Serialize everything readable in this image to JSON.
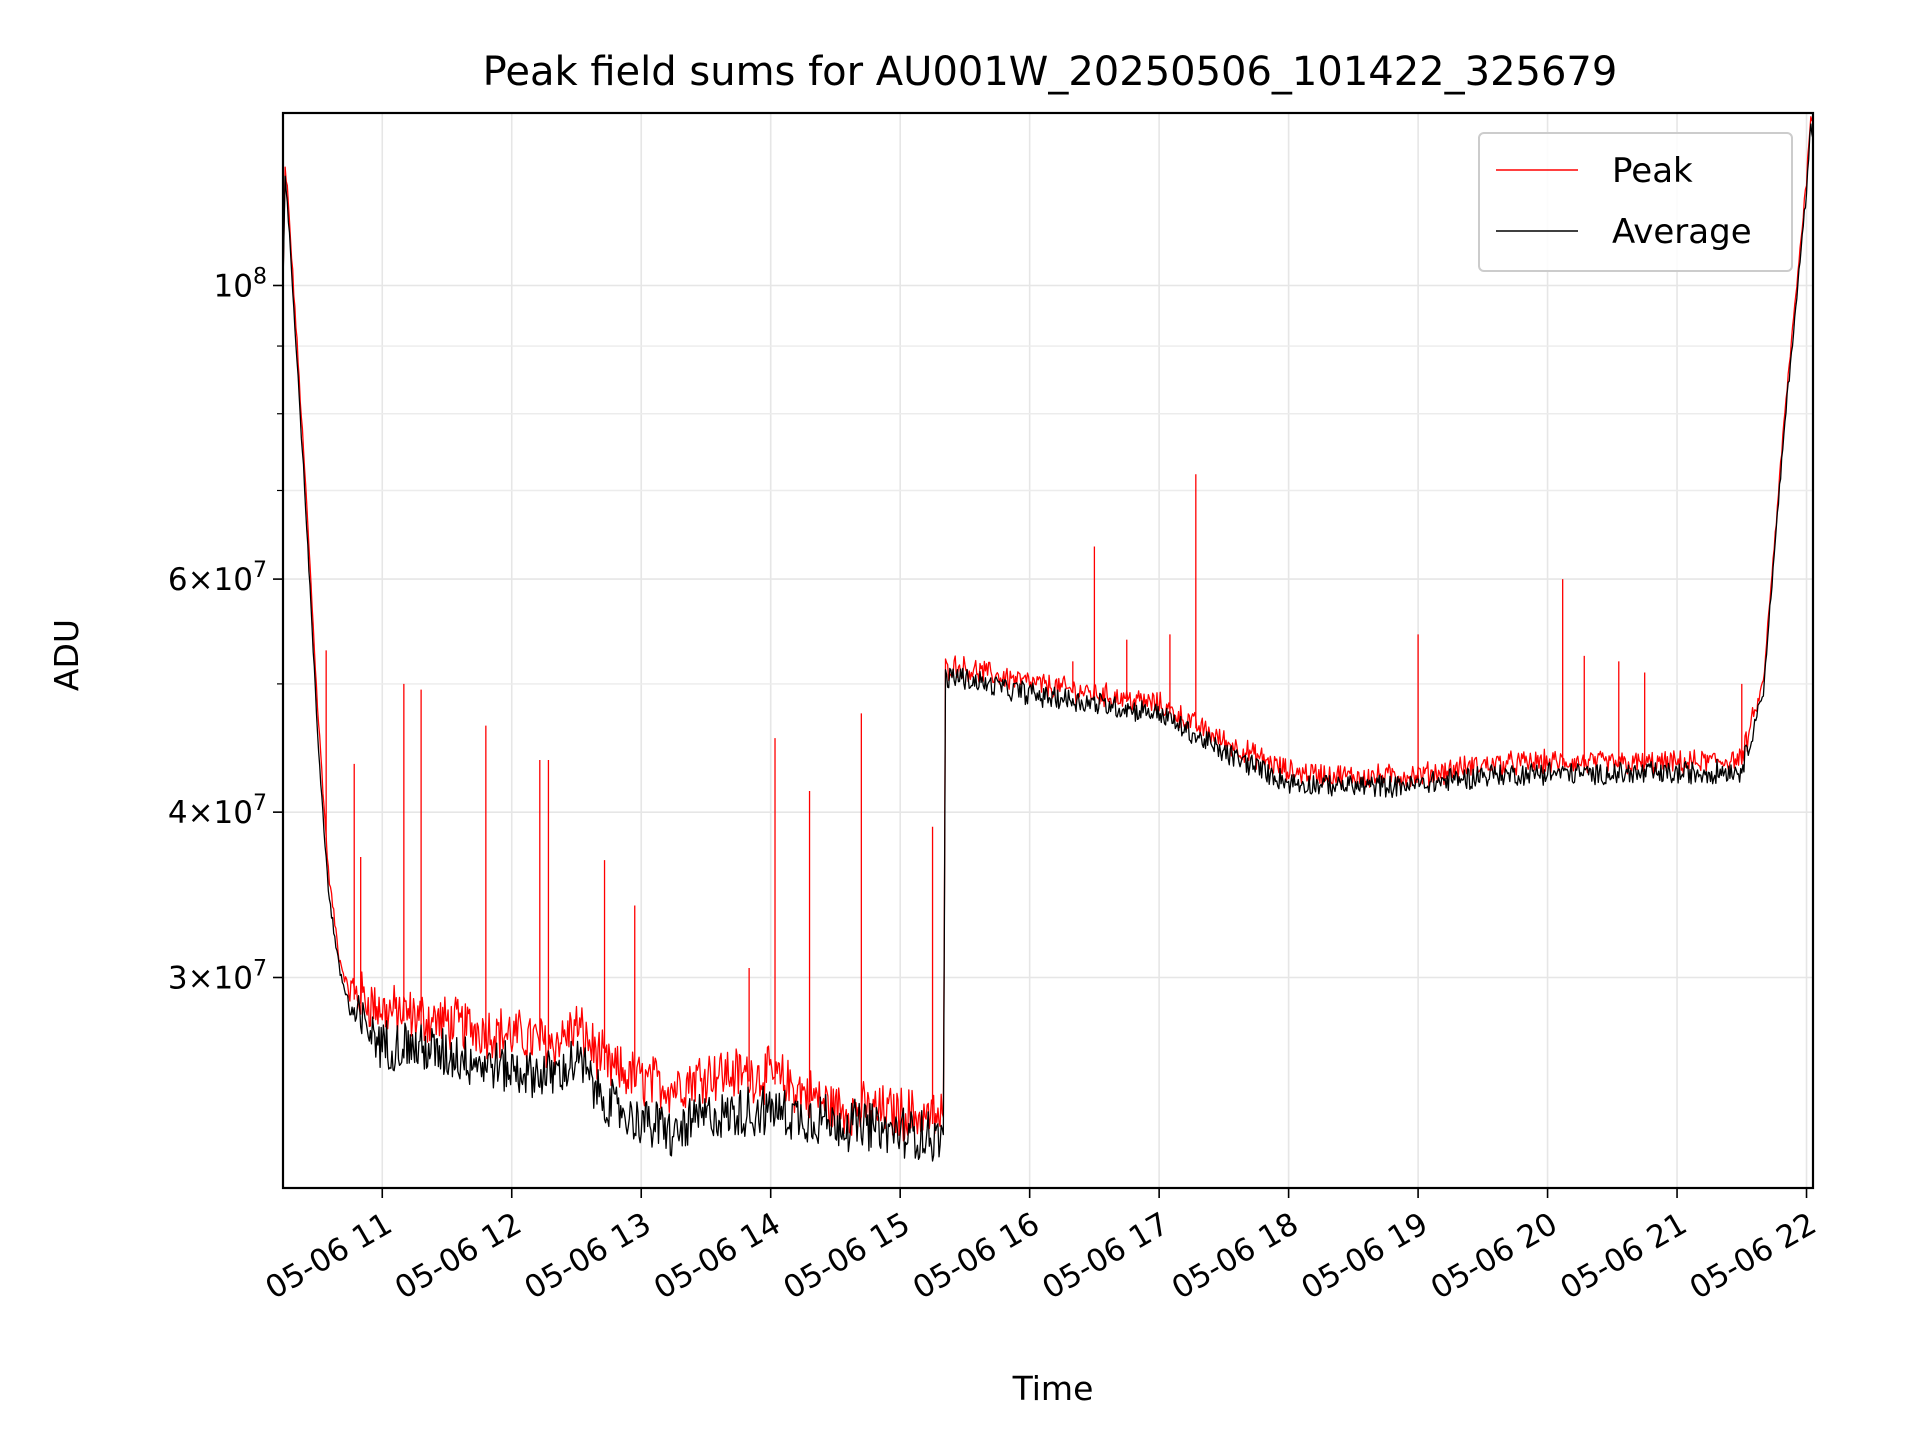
{
  "chart_data": {
    "type": "line",
    "title": "Peak field sums for AU001W_20250506_101422_325679",
    "xlabel": "Time",
    "ylabel": "ADU",
    "yscale": "log",
    "grid": true,
    "legend_position": "top-right",
    "xlim": [
      "2025-05-06 10:14",
      "2025-05-06 22:03"
    ],
    "ylim": [
      20800000,
      135000000
    ],
    "x_ticks": [
      "05-06 11",
      "05-06 12",
      "05-06 13",
      "05-06 14",
      "05-06 15",
      "05-06 16",
      "05-06 17",
      "05-06 18",
      "05-06 19",
      "05-06 20",
      "05-06 21",
      "05-06 22"
    ],
    "x_tick_times": [
      "2025-05-06 11:00",
      "2025-05-06 12:00",
      "2025-05-06 13:00",
      "2025-05-06 14:00",
      "2025-05-06 15:00",
      "2025-05-06 16:00",
      "2025-05-06 17:00",
      "2025-05-06 18:00",
      "2025-05-06 19:00",
      "2025-05-06 20:00",
      "2025-05-06 21:00",
      "2025-05-06 22:00"
    ],
    "y_ticks": [
      {
        "value": 100000000,
        "base": "10",
        "exp": "8"
      },
      {
        "value": 60000000,
        "mant": "6",
        "base": "10",
        "exp": "7"
      },
      {
        "value": 40000000,
        "mant": "4",
        "base": "10",
        "exp": "7"
      },
      {
        "value": 30000000,
        "mant": "3",
        "base": "10",
        "exp": "7"
      }
    ],
    "y_minor_ticks": [
      50000000,
      70000000,
      80000000,
      90000000
    ],
    "series": [
      {
        "name": "Peak",
        "color": "#ff0000",
        "points": [
          [
            "2025-05-06 10:14",
            100000000
          ],
          [
            "2025-05-06 10:15",
            122000000
          ],
          [
            "2025-05-06 10:16",
            118000000
          ],
          [
            "2025-05-06 10:20",
            93000000
          ],
          [
            "2025-05-06 10:25",
            68000000
          ],
          [
            "2025-05-06 10:30",
            48000000
          ],
          [
            "2025-05-06 10:35",
            36000000
          ],
          [
            "2025-05-06 10:40",
            31000000
          ],
          [
            "2025-05-06 10:45",
            29000000
          ],
          [
            "2025-05-06 11:00",
            28000000
          ],
          [
            "2025-05-06 11:30",
            27400000
          ],
          [
            "2025-05-06 12:00",
            26800000
          ],
          [
            "2025-05-06 12:20",
            26400000
          ],
          [
            "2025-05-06 12:30",
            27200000
          ],
          [
            "2025-05-06 12:45",
            25300000
          ],
          [
            "2025-05-06 13:00",
            24800000
          ],
          [
            "2025-05-06 13:15",
            24500000
          ],
          [
            "2025-05-06 13:30",
            25100000
          ],
          [
            "2025-05-06 14:00",
            25000000
          ],
          [
            "2025-05-06 14:30",
            23600000
          ],
          [
            "2025-05-06 15:00",
            23400000
          ],
          [
            "2025-05-06 15:20",
            23200000
          ],
          [
            "2025-05-06 15:21",
            51000000
          ],
          [
            "2025-05-06 15:25",
            51300000
          ],
          [
            "2025-05-06 16:00",
            49800000
          ],
          [
            "2025-05-06 16:30",
            48900000
          ],
          [
            "2025-05-06 17:00",
            48000000
          ],
          [
            "2025-05-06 17:30",
            45000000
          ],
          [
            "2025-05-06 18:00",
            42700000
          ],
          [
            "2025-05-06 18:30",
            42300000
          ],
          [
            "2025-05-06 19:00",
            42400000
          ],
          [
            "2025-05-06 19:30",
            43200000
          ],
          [
            "2025-05-06 20:00",
            43400000
          ],
          [
            "2025-05-06 20:30",
            43300000
          ],
          [
            "2025-05-06 21:00",
            43300000
          ],
          [
            "2025-05-06 21:30",
            43600000
          ],
          [
            "2025-05-06 21:40",
            50000000
          ],
          [
            "2025-05-06 21:50",
            80000000
          ],
          [
            "2025-05-06 22:00",
            120000000
          ],
          [
            "2025-05-06 22:02",
            135000000
          ],
          [
            "2025-05-06 22:03",
            132000000
          ]
        ]
      },
      {
        "name": "Average",
        "color": "#000000",
        "points": [
          [
            "2025-05-06 10:14",
            100000000
          ],
          [
            "2025-05-06 10:15",
            120000000
          ],
          [
            "2025-05-06 10:16",
            116000000
          ],
          [
            "2025-05-06 10:20",
            91000000
          ],
          [
            "2025-05-06 10:25",
            66000000
          ],
          [
            "2025-05-06 10:30",
            46000000
          ],
          [
            "2025-05-06 10:35",
            35000000
          ],
          [
            "2025-05-06 10:40",
            30500000
          ],
          [
            "2025-05-06 10:45",
            28500000
          ],
          [
            "2025-05-06 11:00",
            27000000
          ],
          [
            "2025-05-06 11:30",
            26500000
          ],
          [
            "2025-05-06 12:00",
            25800000
          ],
          [
            "2025-05-06 12:20",
            25500000
          ],
          [
            "2025-05-06 12:30",
            26200000
          ],
          [
            "2025-05-06 12:45",
            24200000
          ],
          [
            "2025-05-06 13:00",
            23600000
          ],
          [
            "2025-05-06 13:15",
            23000000
          ],
          [
            "2025-05-06 13:30",
            23800000
          ],
          [
            "2025-05-06 14:00",
            24000000
          ],
          [
            "2025-05-06 14:30",
            23500000
          ],
          [
            "2025-05-06 15:00",
            23100000
          ],
          [
            "2025-05-06 15:20",
            22900000
          ],
          [
            "2025-05-06 15:21",
            50500000
          ],
          [
            "2025-05-06 15:25",
            50800000
          ],
          [
            "2025-05-06 16:00",
            49300000
          ],
          [
            "2025-05-06 16:30",
            48500000
          ],
          [
            "2025-05-06 17:00",
            47700000
          ],
          [
            "2025-05-06 17:30",
            44500000
          ],
          [
            "2025-05-06 18:00",
            42300000
          ],
          [
            "2025-05-06 18:30",
            42000000
          ],
          [
            "2025-05-06 19:00",
            42100000
          ],
          [
            "2025-05-06 19:30",
            42800000
          ],
          [
            "2025-05-06 20:00",
            43000000
          ],
          [
            "2025-05-06 20:30",
            42900000
          ],
          [
            "2025-05-06 21:00",
            42900000
          ],
          [
            "2025-05-06 21:30",
            43200000
          ],
          [
            "2025-05-06 21:40",
            49500000
          ],
          [
            "2025-05-06 21:50",
            79000000
          ],
          [
            "2025-05-06 22:00",
            118000000
          ],
          [
            "2025-05-06 22:02",
            133000000
          ],
          [
            "2025-05-06 22:03",
            130000000
          ]
        ]
      }
    ],
    "spikes": [
      [
        "2025-05-06 10:34",
        53000000
      ],
      [
        "2025-05-06 10:47",
        43500000
      ],
      [
        "2025-05-06 10:50",
        37000000
      ],
      [
        "2025-05-06 11:10",
        50000000
      ],
      [
        "2025-05-06 11:18",
        49500000
      ],
      [
        "2025-05-06 11:48",
        46500000
      ],
      [
        "2025-05-06 12:13",
        43800000
      ],
      [
        "2025-05-06 12:17",
        43800000
      ],
      [
        "2025-05-06 12:43",
        36800000
      ],
      [
        "2025-05-06 12:57",
        34000000
      ],
      [
        "2025-05-06 13:50",
        30500000
      ],
      [
        "2025-05-06 14:02",
        45500000
      ],
      [
        "2025-05-06 14:18",
        41500000
      ],
      [
        "2025-05-06 14:42",
        47500000
      ],
      [
        "2025-05-06 15:15",
        39000000
      ],
      [
        "2025-05-06 16:20",
        52000000
      ],
      [
        "2025-05-06 16:30",
        63500000
      ],
      [
        "2025-05-06 16:45",
        54000000
      ],
      [
        "2025-05-06 17:05",
        54500000
      ],
      [
        "2025-05-06 17:17",
        72000000
      ],
      [
        "2025-05-06 19:00",
        54500000
      ],
      [
        "2025-05-06 20:07",
        60000000
      ],
      [
        "2025-05-06 20:17",
        52500000
      ],
      [
        "2025-05-06 20:33",
        52000000
      ],
      [
        "2025-05-06 20:45",
        51000000
      ],
      [
        "2025-05-06 21:30",
        50000000
      ]
    ]
  }
}
